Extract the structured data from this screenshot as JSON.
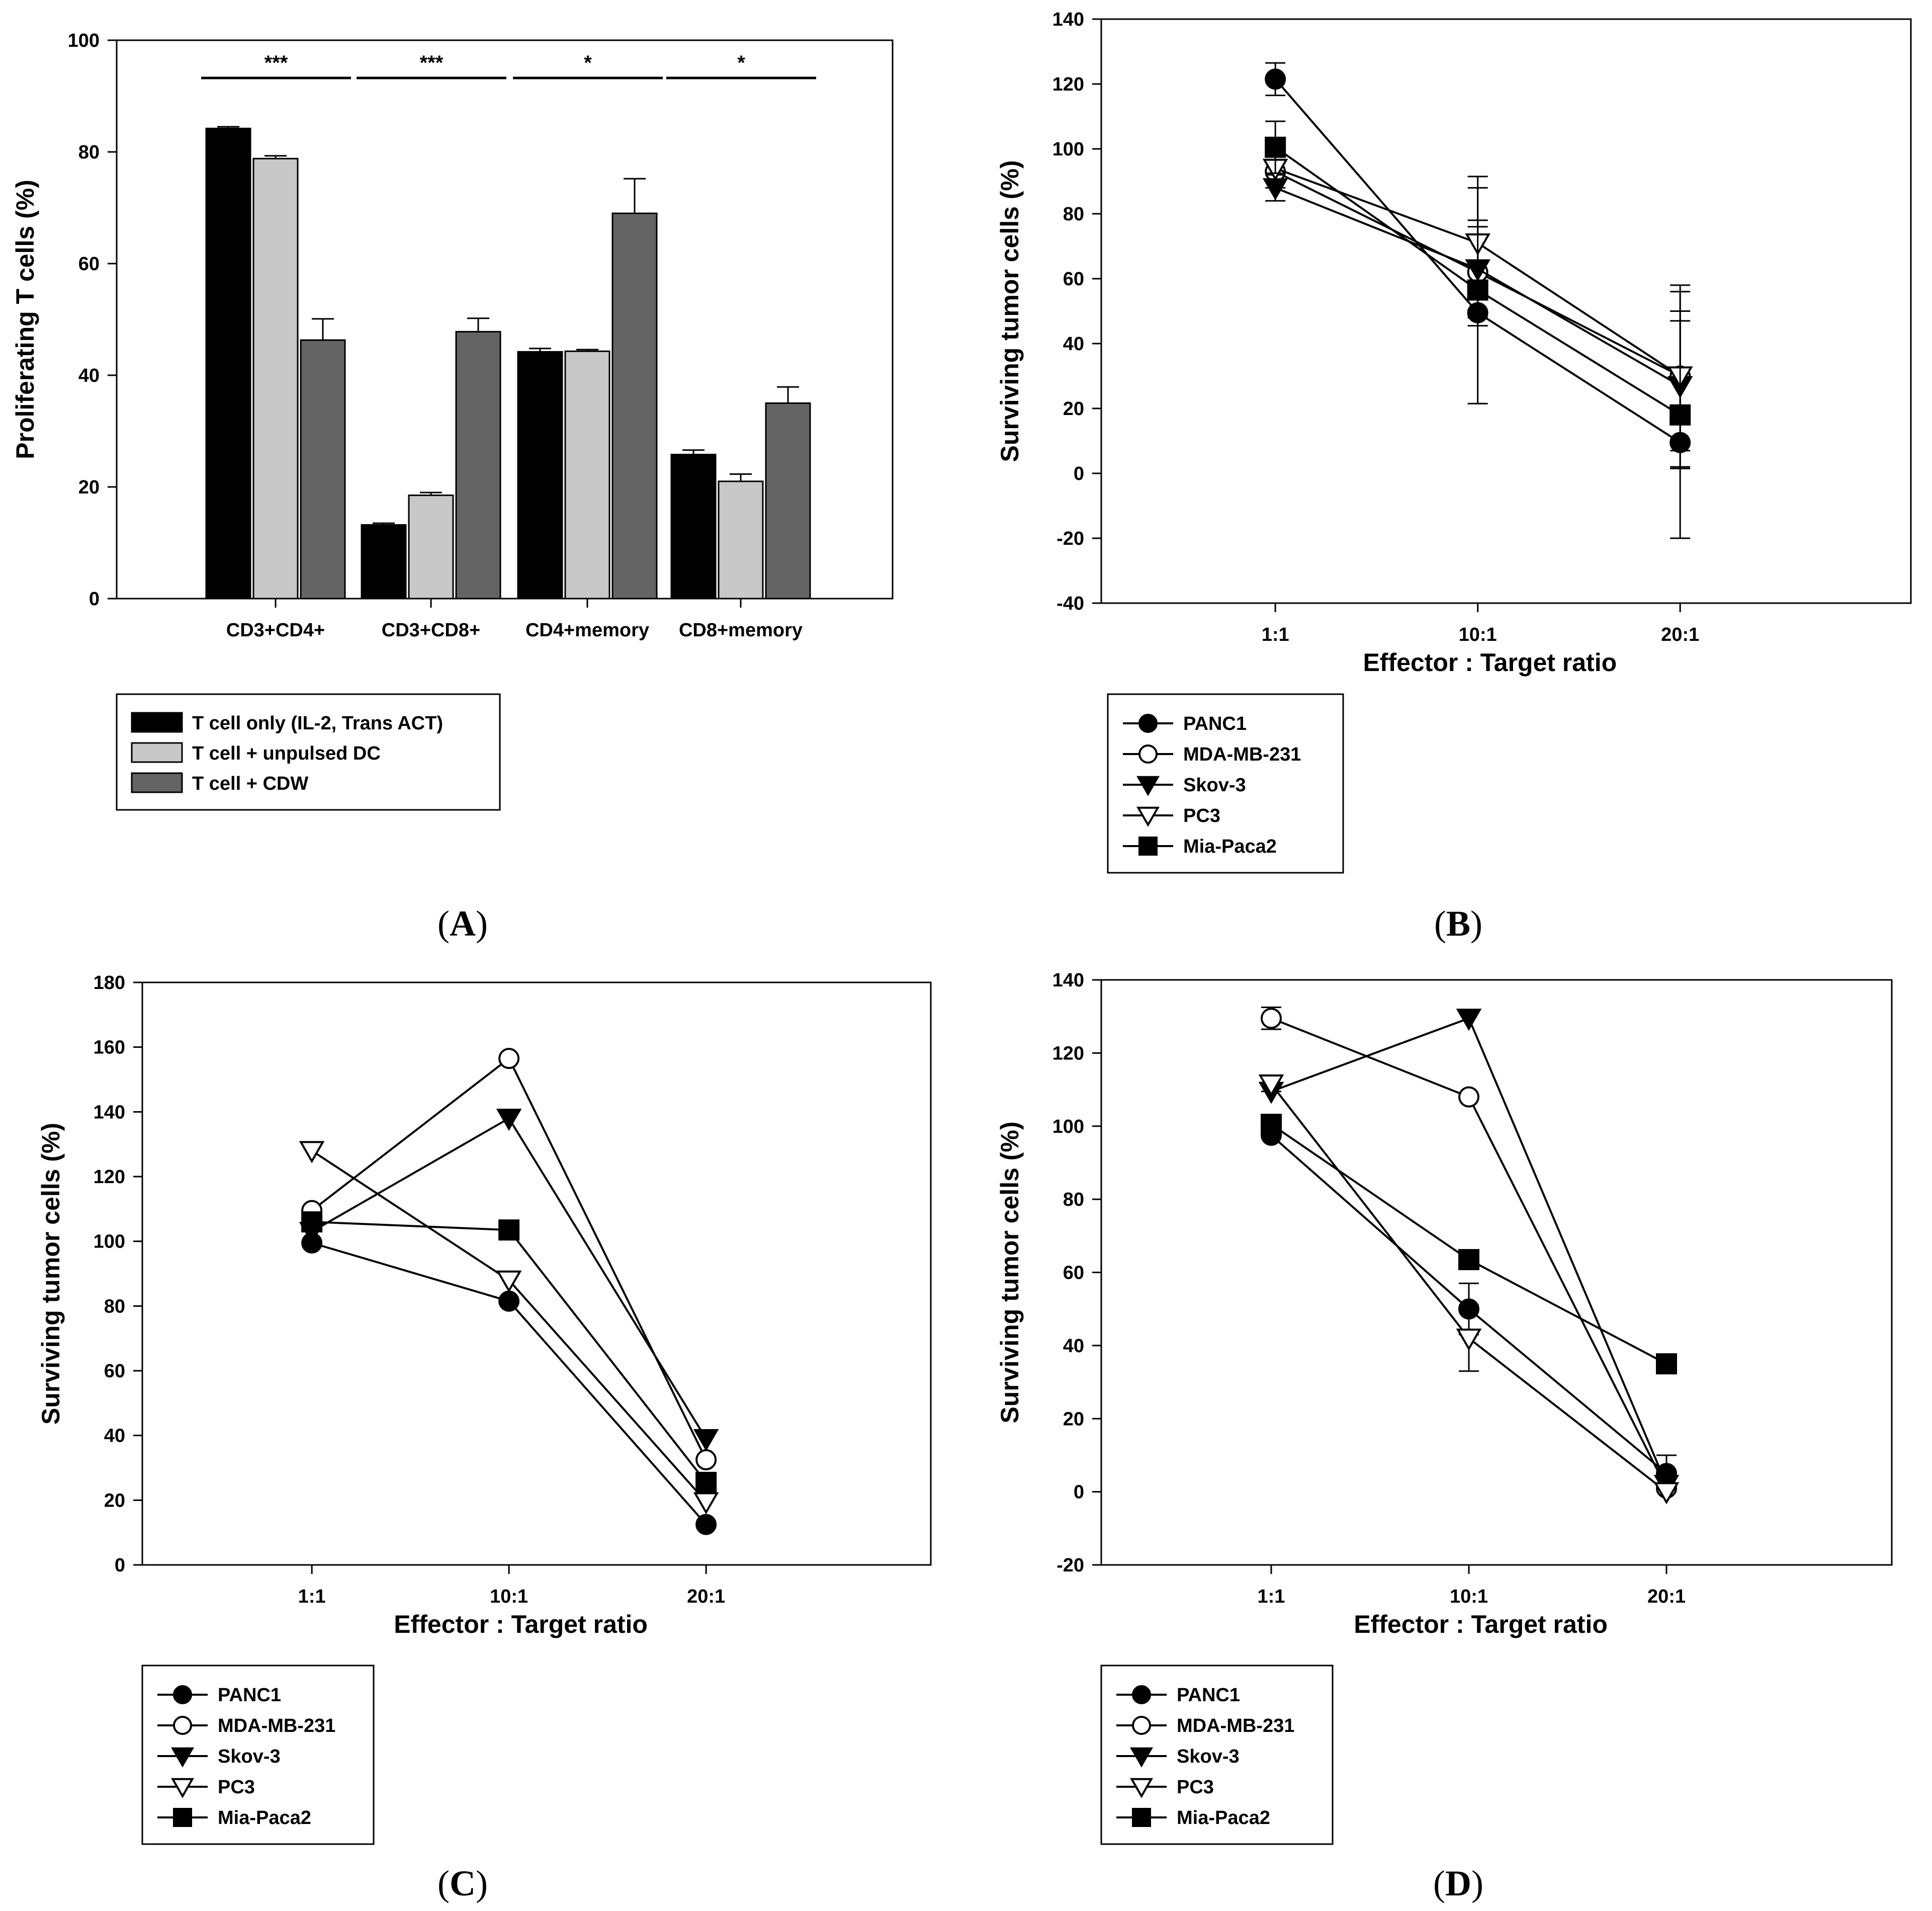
{
  "chart_data": [
    {
      "id": "A",
      "type": "bar",
      "caption": "A",
      "ylabel": "Proliferating T cells (%)",
      "xlabel": "",
      "ylim": [
        0,
        100
      ],
      "yticks": [
        0,
        20,
        40,
        60,
        80,
        100
      ],
      "categories": [
        "CD3+CD4+",
        "CD3+CD8+",
        "CD4+memory",
        "CD8+memory"
      ],
      "series": [
        {
          "name": "T cell only (IL-2, Trans ACT)",
          "color": "#000000",
          "values": [
            84.2,
            13.2,
            44.2,
            25.8
          ],
          "errors": [
            0.3,
            0.3,
            0.6,
            0.8
          ]
        },
        {
          "name": "T cell + unpulsed DC",
          "color": "#c8c8c8",
          "values": [
            78.8,
            18.5,
            44.3,
            21.0
          ],
          "errors": [
            0.5,
            0.5,
            0.3,
            1.3
          ]
        },
        {
          "name": "T cell + CDW",
          "color": "#646464",
          "values": [
            46.3,
            47.8,
            69.0,
            35.0
          ],
          "errors": [
            3.8,
            2.4,
            6.2,
            2.9
          ]
        }
      ],
      "significance": [
        "***",
        "***",
        "*",
        "*"
      ],
      "grid": false
    },
    {
      "id": "B",
      "type": "line",
      "caption": "B",
      "ylabel": "Surviving tumor cells (%)",
      "xlabel": "Effector : Target ratio",
      "categories": [
        "1:1",
        "10:1",
        "20:1"
      ],
      "ylim": [
        -40,
        140
      ],
      "yticks": [
        -40,
        -20,
        0,
        20,
        40,
        60,
        80,
        100,
        120,
        140
      ],
      "series": [
        {
          "name": "PANC1",
          "marker": "circle",
          "filled": true,
          "values": [
            121.5,
            49.5,
            9.5
          ],
          "errors": [
            5,
            4,
            8
          ]
        },
        {
          "name": "MDA-MB-231",
          "marker": "circle",
          "filled": false,
          "values": [
            93,
            62,
            30
          ],
          "errors": [
            5,
            14,
            20
          ]
        },
        {
          "name": "Skov-3",
          "marker": "triangle-down",
          "filled": true,
          "values": [
            88,
            63,
            27
          ],
          "errors": [
            4,
            15,
            20
          ]
        },
        {
          "name": "PC3",
          "marker": "triangle-down",
          "filled": false,
          "values": [
            94,
            71,
            30
          ],
          "errors": [
            4,
            17,
            28
          ]
        },
        {
          "name": "Mia-Paca2",
          "marker": "square",
          "filled": true,
          "values": [
            100.5,
            56.5,
            18
          ],
          "errors": [
            8,
            35,
            38
          ]
        }
      ],
      "grid": false
    },
    {
      "id": "C",
      "type": "line",
      "caption": "C",
      "ylabel": "Surviving tumor cells (%)",
      "xlabel": "Effector : Target ratio",
      "categories": [
        "1:1",
        "10:1",
        "20:1"
      ],
      "ylim": [
        0,
        180
      ],
      "yticks": [
        0,
        20,
        40,
        60,
        80,
        100,
        120,
        140,
        160,
        180
      ],
      "series": [
        {
          "name": "PANC1",
          "marker": "circle",
          "filled": true,
          "values": [
            99.5,
            81.5,
            12.5
          ],
          "errors": [
            1,
            1,
            1
          ]
        },
        {
          "name": "MDA-MB-231",
          "marker": "circle",
          "filled": false,
          "values": [
            109.5,
            156.5,
            32.5
          ],
          "errors": [
            1,
            1,
            1
          ]
        },
        {
          "name": "Skov-3",
          "marker": "triangle-down",
          "filled": true,
          "values": [
            103,
            138,
            39
          ],
          "errors": [
            1,
            1,
            1
          ]
        },
        {
          "name": "PC3",
          "marker": "triangle-down",
          "filled": false,
          "values": [
            128,
            88,
            19.5
          ],
          "errors": [
            1,
            1,
            1
          ]
        },
        {
          "name": "Mia-Paca2",
          "marker": "square",
          "filled": true,
          "values": [
            106,
            103.5,
            25.5
          ],
          "errors": [
            1,
            1,
            1
          ]
        }
      ],
      "grid": false
    },
    {
      "id": "D",
      "type": "line",
      "caption": "D",
      "ylabel": "Surviving tumor cells (%)",
      "xlabel": "Effector : Target ratio",
      "categories": [
        "1:1",
        "10:1",
        "20:1"
      ],
      "ylim": [
        -20,
        140
      ],
      "yticks": [
        -20,
        0,
        20,
        40,
        60,
        80,
        100,
        120,
        140
      ],
      "series": [
        {
          "name": "PANC1",
          "marker": "circle",
          "filled": true,
          "values": [
            97.5,
            50,
            5
          ],
          "errors": [
            1,
            7,
            5
          ]
        },
        {
          "name": "MDA-MB-231",
          "marker": "circle",
          "filled": false,
          "values": [
            129.5,
            108,
            1
          ],
          "errors": [
            3,
            1,
            1
          ]
        },
        {
          "name": "Skov-3",
          "marker": "triangle-down",
          "filled": true,
          "values": [
            109.5,
            129.5,
            2
          ],
          "errors": [
            1,
            1,
            1
          ]
        },
        {
          "name": "PC3",
          "marker": "triangle-down",
          "filled": false,
          "values": [
            111.5,
            42,
            0
          ],
          "errors": [
            2,
            9,
            1
          ]
        },
        {
          "name": "Mia-Paca2",
          "marker": "square",
          "filled": true,
          "values": [
            100.5,
            63.5,
            35
          ],
          "errors": [
            1,
            1,
            1
          ]
        }
      ],
      "grid": false
    }
  ]
}
